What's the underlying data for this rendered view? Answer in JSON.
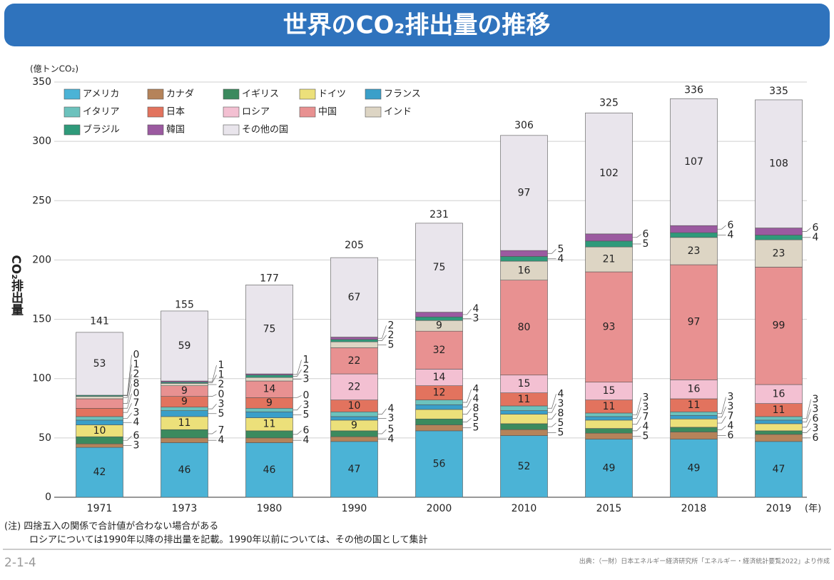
{
  "chart_data": {
    "type": "stacked-bar",
    "title": "世界のCO₂排出量の推移",
    "unit_label": "(億トンCO₂)",
    "y_axis_label": "CO₂排出量",
    "x_axis_unit": "(年)",
    "categories": [
      "1971",
      "1973",
      "1980",
      "1990",
      "2000",
      "2010",
      "2015",
      "2018",
      "2019"
    ],
    "series": [
      {
        "name": "アメリカ",
        "color": "#4bb3d6",
        "values": [
          42,
          46,
          46,
          47,
          56,
          52,
          49,
          49,
          47
        ]
      },
      {
        "name": "カナダ",
        "color": "#b5835a",
        "values": [
          3,
          4,
          4,
          4,
          5,
          5,
          5,
          6,
          6
        ]
      },
      {
        "name": "イギリス",
        "color": "#3b8a5e",
        "values": [
          6,
          7,
          6,
          5,
          5,
          5,
          4,
          4,
          3
        ]
      },
      {
        "name": "ドイツ",
        "color": "#ece07a",
        "values": [
          10,
          11,
          11,
          9,
          8,
          8,
          7,
          7,
          6
        ]
      },
      {
        "name": "フランス",
        "color": "#3a9fc9",
        "values": [
          4,
          5,
          5,
          3,
          4,
          3,
          3,
          3,
          3
        ]
      },
      {
        "name": "イタリア",
        "color": "#6cc2bd",
        "values": [
          3,
          3,
          3,
          4,
          4,
          4,
          3,
          3,
          3
        ]
      },
      {
        "name": "日本",
        "color": "#e2735e",
        "values": [
          7,
          9,
          9,
          10,
          12,
          11,
          11,
          11,
          11
        ]
      },
      {
        "name": "ロシア",
        "color": "#f3c0d2",
        "values": [
          0,
          0,
          0,
          22,
          14,
          15,
          15,
          16,
          16
        ]
      },
      {
        "name": "中国",
        "color": "#e89191",
        "values": [
          8,
          9,
          14,
          22,
          32,
          80,
          93,
          97,
          99
        ]
      },
      {
        "name": "インド",
        "color": "#ddd5c4",
        "values": [
          2,
          2,
          3,
          5,
          9,
          16,
          21,
          23,
          23
        ]
      },
      {
        "name": "ブラジル",
        "color": "#2f9a7a",
        "values": [
          1,
          1,
          2,
          2,
          3,
          4,
          5,
          4,
          4
        ]
      },
      {
        "name": "韓国",
        "color": "#9b5aa0",
        "values": [
          0,
          1,
          1,
          2,
          4,
          5,
          6,
          6,
          6
        ]
      },
      {
        "name": "その他の国",
        "color": "#e9e5ec",
        "values": [
          53,
          59,
          75,
          67,
          75,
          97,
          102,
          107,
          108
        ]
      }
    ],
    "totals": [
      141,
      155,
      177,
      205,
      231,
      306,
      325,
      336,
      335
    ],
    "ylim": [
      0,
      350
    ],
    "yticks": [
      0,
      50,
      100,
      150,
      200,
      250,
      300,
      350
    ],
    "grid": true,
    "legend": "top-left",
    "notes": [
      "(注) 四捨五入の関係で合計値が合わない場合がある",
      "ロシアについては1990年以降の排出量を記載。1990年以前については、その他の国として集計"
    ],
    "figure_number": "2-1-4",
    "source": "出典：（一財）日本エネルギー経済研究所「エネルギー・経済統計要覧2022」より作成"
  }
}
